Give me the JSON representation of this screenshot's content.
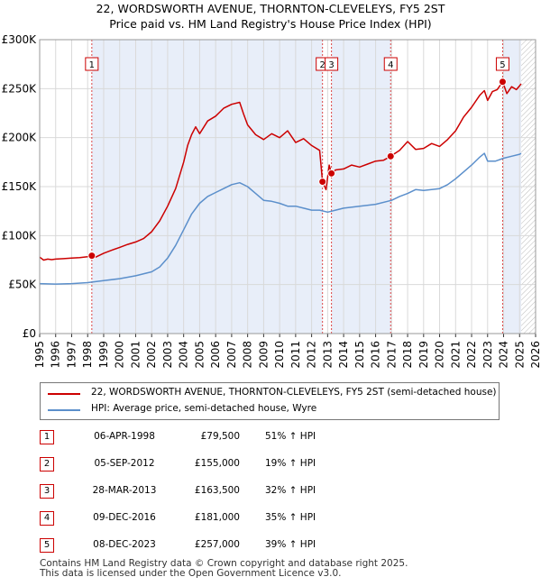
{
  "title_line1": "22, WORDSWORTH AVENUE, THORNTON-CLEVELEYS, FY5 2ST",
  "title_line2": "Price paid vs. HM Land Registry's House Price Index (HPI)",
  "chart_data": {
    "type": "line",
    "title": "22, WORDSWORTH AVENUE, THORNTON-CLEVELEYS, FY5 2ST",
    "subtitle": "Price paid vs. HM Land Registry's House Price Index (HPI)",
    "xlim": [
      1995,
      2026
    ],
    "ylim": [
      0,
      300000
    ],
    "y_ticks": [
      0,
      50000,
      100000,
      150000,
      200000,
      250000,
      300000
    ],
    "y_tick_labels": [
      "£0",
      "£50K",
      "£100K",
      "£150K",
      "£200K",
      "£250K",
      "£300K"
    ],
    "x_ticks": [
      1995,
      1996,
      1997,
      1998,
      1999,
      2000,
      2001,
      2002,
      2003,
      2004,
      2005,
      2006,
      2007,
      2008,
      2009,
      2010,
      2011,
      2012,
      2013,
      2014,
      2015,
      2016,
      2017,
      2018,
      2019,
      2020,
      2021,
      2022,
      2023,
      2024,
      2025,
      2026
    ],
    "x_tick_labels": [
      "1995",
      "1996",
      "1997",
      "1998",
      "1999",
      "2000",
      "2001",
      "2002",
      "2003",
      "2004",
      "2005",
      "2006",
      "2007",
      "2008",
      "2009",
      "2010",
      "2011",
      "2012",
      "2013",
      "2014",
      "2015",
      "2016",
      "2017",
      "2018",
      "2019",
      "2020",
      "2021",
      "2022",
      "2023",
      "2024",
      "2025",
      "2026"
    ],
    "grid": true,
    "shaded_regions": [
      [
        1998.26,
        2012.68
      ],
      [
        2013.24,
        2016.94
      ],
      [
        2023.94,
        2025.1
      ]
    ],
    "forecast_start": 2025.1,
    "series": [
      {
        "name": "22, WORDSWORTH AVENUE, THORNTON-CLEVELEYS, FY5 2ST (semi-detached house)",
        "color": "#cc0000",
        "x": [
          1995,
          1995.25,
          1995.5,
          1995.75,
          1996,
          1996.5,
          1997,
          1997.5,
          1998,
          1998.26,
          1998.5,
          1999,
          1999.5,
          2000,
          2000.5,
          2001,
          2001.5,
          2002,
          2002.5,
          2003,
          2003.5,
          2004,
          2004.25,
          2004.5,
          2004.75,
          2005,
          2005.5,
          2006,
          2006.5,
          2007,
          2007.5,
          2007.75,
          2008,
          2008.5,
          2009,
          2009.5,
          2010,
          2010.5,
          2011,
          2011.5,
          2012,
          2012.5,
          2012.68,
          2012.9,
          2013.1,
          2013.24,
          2013.5,
          2014,
          2014.5,
          2015,
          2015.5,
          2016,
          2016.5,
          2016.94,
          2017.5,
          2018,
          2018.5,
          2019,
          2019.5,
          2020,
          2020.5,
          2021,
          2021.5,
          2022,
          2022.5,
          2022.8,
          2023,
          2023.3,
          2023.6,
          2023.94,
          2024.2,
          2024.5,
          2024.8,
          2025,
          2025.1
        ],
        "values": [
          78000,
          75000,
          76000,
          75500,
          76000,
          76500,
          77000,
          77500,
          78500,
          79500,
          78000,
          82000,
          85000,
          88000,
          91000,
          93500,
          97000,
          104000,
          115000,
          130000,
          148000,
          175000,
          192000,
          203000,
          211000,
          204000,
          217000,
          222000,
          230000,
          234000,
          236000,
          224000,
          213000,
          203000,
          198000,
          204000,
          200000,
          207000,
          195000,
          199000,
          192000,
          187000,
          155000,
          147000,
          172000,
          163500,
          167000,
          168000,
          172000,
          170000,
          173000,
          176000,
          177000,
          181000,
          187000,
          196000,
          188000,
          189000,
          194000,
          191000,
          198000,
          207000,
          221000,
          231000,
          243000,
          248000,
          238000,
          247000,
          249000,
          257000,
          245000,
          252000,
          249000,
          253000,
          255000
        ]
      },
      {
        "name": "HPI: Average price, semi-detached house, Wyre",
        "color": "#5b8fcb",
        "x": [
          1995,
          1996,
          1997,
          1998,
          1998.5,
          1999,
          2000,
          2001,
          2002,
          2002.5,
          2003,
          2003.5,
          2004,
          2004.5,
          2005,
          2005.5,
          2006,
          2006.5,
          2007,
          2007.5,
          2008,
          2008.5,
          2009,
          2009.5,
          2010,
          2010.5,
          2011,
          2011.5,
          2012,
          2012.5,
          2013,
          2013.5,
          2014,
          2015,
          2016,
          2017,
          2017.5,
          2018,
          2018.5,
          2019,
          2020,
          2020.5,
          2021,
          2021.5,
          2022,
          2022.5,
          2022.8,
          2023,
          2023.5,
          2024,
          2024.5,
          2025,
          2025.1
        ],
        "values": [
          51000,
          50500,
          51000,
          52000,
          53000,
          54000,
          56000,
          59000,
          63000,
          68000,
          77000,
          90000,
          106000,
          122000,
          133000,
          140000,
          144000,
          148000,
          152000,
          154000,
          150000,
          143000,
          136000,
          135000,
          133000,
          130000,
          130000,
          128000,
          126000,
          126000,
          124000,
          126000,
          128000,
          130000,
          132000,
          136000,
          140000,
          143000,
          147000,
          146000,
          148000,
          152000,
          158000,
          165000,
          172000,
          180000,
          184000,
          176000,
          176000,
          179000,
          181000,
          183000,
          184000
        ]
      }
    ],
    "sale_markers": [
      {
        "label": "1",
        "x": 1998.26,
        "value": 79500
      },
      {
        "label": "2",
        "x": 2012.68,
        "value": 155000
      },
      {
        "label": "3",
        "x": 2013.24,
        "value": 163500
      },
      {
        "label": "4",
        "x": 2016.94,
        "value": 181000
      },
      {
        "label": "5",
        "x": 2023.94,
        "value": 257000
      }
    ]
  },
  "legend": {
    "property_label": "22, WORDSWORTH AVENUE, THORNTON-CLEVELEYS, FY5 2ST (semi-detached house)",
    "hpi_label": "HPI: Average price, semi-detached house, Wyre",
    "property_color": "#cc0000",
    "hpi_color": "#5b8fcb"
  },
  "sales": [
    {
      "num": "1",
      "date": "06-APR-1998",
      "price": "£79,500",
      "hpi": "51% ↑ HPI"
    },
    {
      "num": "2",
      "date": "05-SEP-2012",
      "price": "£155,000",
      "hpi": "19% ↑ HPI"
    },
    {
      "num": "3",
      "date": "28-MAR-2013",
      "price": "£163,500",
      "hpi": "32% ↑ HPI"
    },
    {
      "num": "4",
      "date": "09-DEC-2016",
      "price": "£181,000",
      "hpi": "35% ↑ HPI"
    },
    {
      "num": "5",
      "date": "08-DEC-2023",
      "price": "£257,000",
      "hpi": "39% ↑ HPI"
    }
  ],
  "footer_line1": "Contains HM Land Registry data © Crown copyright and database right 2025.",
  "footer_line2": "This data is licensed under the Open Government Licence v3.0."
}
